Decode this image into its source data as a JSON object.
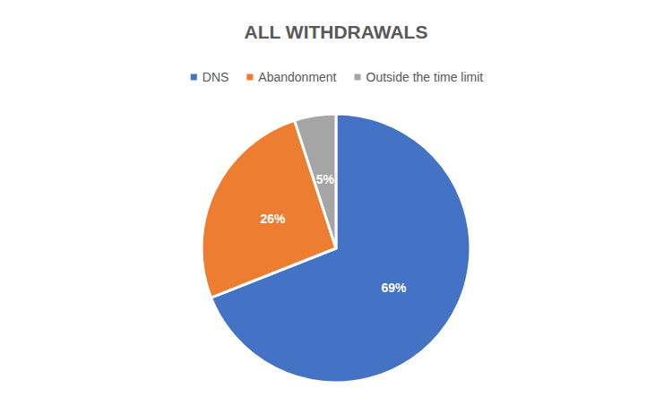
{
  "chart_data": {
    "type": "pie",
    "title": "ALL WITHDRAWALS",
    "categories": [
      "DNS",
      "Abandonment",
      "Outside the time limit"
    ],
    "values": [
      69,
      26,
      5
    ],
    "value_labels": [
      "69%",
      "26%",
      "5%"
    ],
    "colors": [
      "#4472c4",
      "#ed7d31",
      "#a5a5a5"
    ],
    "data_labels": true,
    "legend": "top"
  }
}
